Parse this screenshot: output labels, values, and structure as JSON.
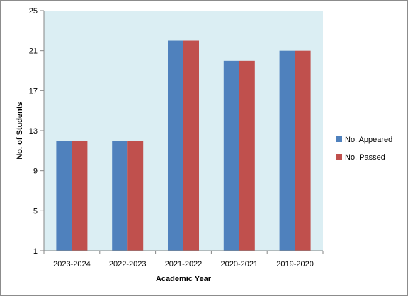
{
  "chart_data": {
    "type": "bar",
    "categories": [
      "2023-2024",
      "2022-2023",
      "2021-2022",
      "2020-2021",
      "2019-2020"
    ],
    "series": [
      {
        "name": "No. Appeared",
        "color": "#4f81bd",
        "values": [
          12,
          12,
          22,
          20,
          21
        ]
      },
      {
        "name": "No. Passed",
        "color": "#c0504d",
        "values": [
          12,
          12,
          22,
          20,
          21
        ]
      }
    ],
    "xlabel": "Academic Year",
    "ylabel": "No. of Students",
    "ylim": [
      1,
      25
    ],
    "yticks": [
      1,
      5,
      9,
      13,
      17,
      21,
      25
    ],
    "grid": false,
    "legend_position": "right",
    "plot_background": "#dbeef3"
  }
}
